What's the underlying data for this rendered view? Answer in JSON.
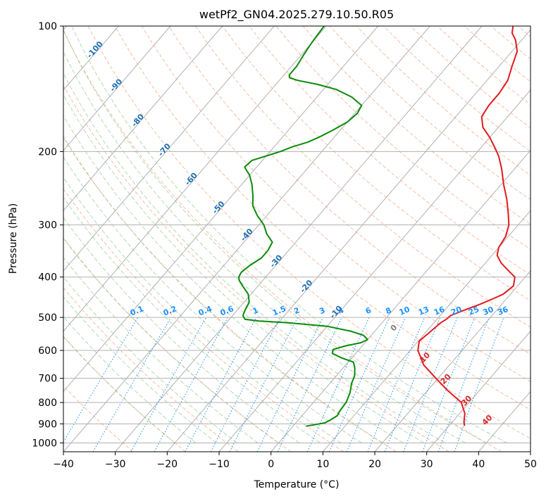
{
  "chart_data": {
    "type": "line",
    "subtype": "skew-t log-p diagram",
    "title": "wetPf2_GN04.2025.279.10.50.R05",
    "xlabel": "Temperature (°C)",
    "ylabel": "Pressure (hPa)",
    "xlim": [
      -40,
      50
    ],
    "ylim": [
      1050,
      100
    ],
    "y_scale": "log",
    "x_ticks": [
      "−40",
      "−30",
      "−20",
      "−10",
      "0",
      "10",
      "20",
      "30",
      "40",
      "50"
    ],
    "x_tick_values": [
      -40,
      -30,
      -20,
      -10,
      0,
      10,
      20,
      30,
      40,
      50
    ],
    "y_ticks": [
      "100",
      "200",
      "300",
      "400",
      "500",
      "600",
      "700",
      "800",
      "900",
      "1000"
    ],
    "y_tick_values": [
      100,
      200,
      300,
      400,
      500,
      600,
      700,
      800,
      900,
      1000
    ],
    "grid": true,
    "series": [
      {
        "color": "#e31a1c",
        "points": [
          [
            910,
            33.0
          ],
          [
            890,
            32.2
          ],
          [
            850,
            31.0
          ],
          [
            800,
            28.5
          ],
          [
            750,
            24.0
          ],
          [
            700,
            19.6
          ],
          [
            650,
            15.0
          ],
          [
            600,
            11.5
          ],
          [
            570,
            10.2
          ],
          [
            550,
            10.6
          ],
          [
            530,
            11.0
          ],
          [
            515,
            11.3
          ],
          [
            505,
            11.8
          ],
          [
            495,
            12.0
          ],
          [
            480,
            13.8
          ],
          [
            465,
            15.8
          ],
          [
            450,
            17.5
          ],
          [
            440,
            18.6
          ],
          [
            420,
            19.2
          ],
          [
            400,
            18.0
          ],
          [
            385,
            15.5
          ],
          [
            370,
            13.0
          ],
          [
            355,
            11.0
          ],
          [
            340,
            10.0
          ],
          [
            320,
            9.5
          ],
          [
            300,
            8.2
          ],
          [
            280,
            6.0
          ],
          [
            260,
            3.5
          ],
          [
            240,
            0.5
          ],
          [
            220,
            -2.5
          ],
          [
            205,
            -5.2
          ],
          [
            195,
            -7.5
          ],
          [
            185,
            -10.0
          ],
          [
            175,
            -13.0
          ],
          [
            165,
            -15.0
          ],
          [
            155,
            -15.5
          ],
          [
            145,
            -15.5
          ],
          [
            135,
            -16.0
          ],
          [
            125,
            -17.5
          ],
          [
            115,
            -19.0
          ],
          [
            108,
            -21.2
          ],
          [
            104,
            -23.0
          ],
          [
            100,
            -24.0
          ]
        ]
      },
      {
        "color": "#0b8a0b",
        "points": [
          [
            912,
            2.5
          ],
          [
            905,
            3.8
          ],
          [
            895,
            5.6
          ],
          [
            880,
            6.2
          ],
          [
            860,
            6.8
          ],
          [
            840,
            6.5
          ],
          [
            800,
            6.3
          ],
          [
            760,
            5.5
          ],
          [
            720,
            4.2
          ],
          [
            690,
            3.5
          ],
          [
            660,
            2.2
          ],
          [
            640,
            1.0
          ],
          [
            625,
            -2.0
          ],
          [
            610,
            -4.5
          ],
          [
            597,
            -5.0
          ],
          [
            585,
            -3.2
          ],
          [
            575,
            -0.8
          ],
          [
            565,
            0.0
          ],
          [
            552,
            -1.5
          ],
          [
            540,
            -4.5
          ],
          [
            525,
            -10.0
          ],
          [
            515,
            -18.0
          ],
          [
            510,
            -24.0
          ],
          [
            505,
            -27.0
          ],
          [
            495,
            -28.0
          ],
          [
            480,
            -28.5
          ],
          [
            460,
            -29.0
          ],
          [
            440,
            -30.5
          ],
          [
            420,
            -33.0
          ],
          [
            408,
            -34.5
          ],
          [
            400,
            -35.2
          ],
          [
            390,
            -35.5
          ],
          [
            375,
            -35.0
          ],
          [
            360,
            -34.0
          ],
          [
            345,
            -34.0
          ],
          [
            330,
            -34.5
          ],
          [
            315,
            -37.0
          ],
          [
            300,
            -39.0
          ],
          [
            285,
            -41.8
          ],
          [
            270,
            -44.3
          ],
          [
            255,
            -46.0
          ],
          [
            240,
            -48.0
          ],
          [
            228,
            -50.0
          ],
          [
            218,
            -52.3
          ],
          [
            210,
            -52.0
          ],
          [
            205,
            -50.0
          ],
          [
            200,
            -48.0
          ],
          [
            195,
            -46.5
          ],
          [
            190,
            -44.3
          ],
          [
            185,
            -43.0
          ],
          [
            178,
            -41.5
          ],
          [
            170,
            -40.0
          ],
          [
            162,
            -39.5
          ],
          [
            155,
            -40.0
          ],
          [
            148,
            -43.3
          ],
          [
            142,
            -47.5
          ],
          [
            138,
            -52.0
          ],
          [
            135,
            -56.5
          ],
          [
            133,
            -58.5
          ],
          [
            131,
            -59.0
          ],
          [
            125,
            -59.0
          ],
          [
            118,
            -59.5
          ],
          [
            110,
            -60.0
          ],
          [
            100,
            -60.4
          ]
        ]
      }
    ],
    "dry_adiabat_labels": [
      "-100",
      "-90",
      "-80",
      "-70",
      "-60",
      "-50",
      "-40",
      "-30",
      "-20",
      "-10"
    ],
    "moist_adiabat_labels": [
      "0",
      "10",
      "20",
      "30",
      "40"
    ],
    "mixing_ratio_labels": [
      "0.1",
      "0.2",
      "0.4",
      "0.6",
      "1",
      "1.5",
      "2",
      "3",
      "4",
      "6",
      "8",
      "10",
      "13",
      "16",
      "20",
      "25",
      "30",
      "36"
    ]
  }
}
